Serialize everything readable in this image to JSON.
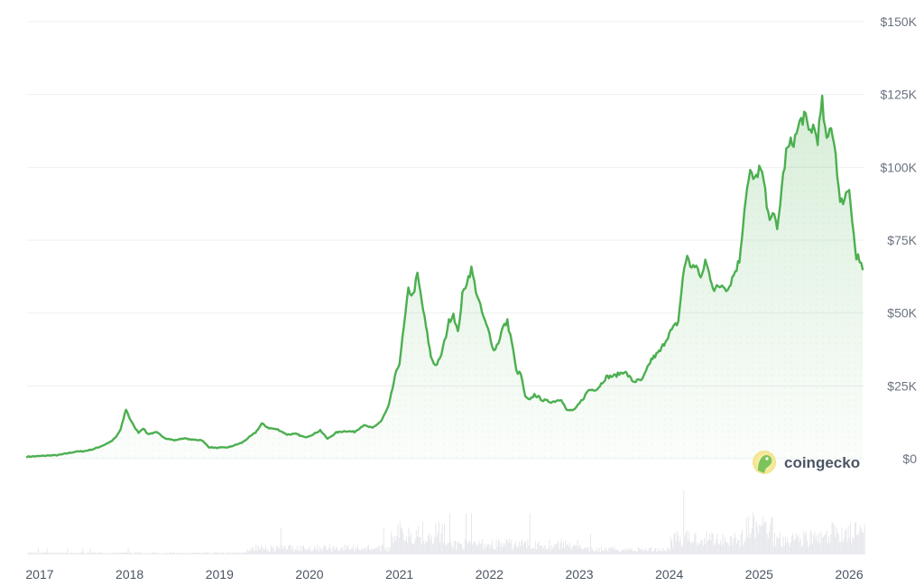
{
  "chart_data": {
    "type": "area",
    "y_ticks": [
      0,
      25000,
      50000,
      75000,
      100000,
      125000,
      150000
    ],
    "y_tick_labels": [
      "$0",
      "$25K",
      "$50K",
      "$75K",
      "$100K",
      "$125K",
      "$150K"
    ],
    "ylim": [
      0,
      150000
    ],
    "x_ticks": [
      2017,
      2018,
      2019,
      2020,
      2021,
      2022,
      2023,
      2024,
      2025,
      2026
    ],
    "x_tick_labels": [
      "2017",
      "2018",
      "2019",
      "2020",
      "2021",
      "2022",
      "2023",
      "2024",
      "2025",
      "2026"
    ],
    "xlim": [
      2016.86,
      2026.17
    ],
    "grid": true,
    "line_color": "#4caf50",
    "fill_color": "#4caf50",
    "volume_color": "#e5e7eb",
    "series": [
      {
        "x": [
          2016.86,
          2017.0,
          2017.1,
          2017.2,
          2017.3,
          2017.4,
          2017.5,
          2017.6,
          2017.7,
          2017.8,
          2017.85,
          2017.9,
          2017.96,
          2018.0,
          2018.05,
          2018.1,
          2018.15,
          2018.2,
          2018.3,
          2018.4,
          2018.5,
          2018.6,
          2018.7,
          2018.8,
          2018.88,
          2018.96,
          2019.1,
          2019.25,
          2019.4,
          2019.47,
          2019.55,
          2019.65,
          2019.75,
          2019.85,
          2019.95,
          2020.05,
          2020.12,
          2020.2,
          2020.3,
          2020.4,
          2020.5,
          2020.6,
          2020.7,
          2020.8,
          2020.88,
          2020.95,
          2021.0,
          2021.05,
          2021.1,
          2021.15,
          2021.2,
          2021.28,
          2021.35,
          2021.4,
          2021.45,
          2021.5,
          2021.55,
          2021.6,
          2021.65,
          2021.7,
          2021.75,
          2021.8,
          2021.85,
          2021.9,
          2021.95,
          2022.0,
          2022.05,
          2022.1,
          2022.15,
          2022.2,
          2022.25,
          2022.3,
          2022.35,
          2022.4,
          2022.45,
          2022.5,
          2022.6,
          2022.7,
          2022.8,
          2022.86,
          2022.95,
          2023.05,
          2023.1,
          2023.2,
          2023.3,
          2023.4,
          2023.5,
          2023.6,
          2023.7,
          2023.8,
          2023.9,
          2024.0,
          2024.1,
          2024.15,
          2024.2,
          2024.25,
          2024.3,
          2024.35,
          2024.4,
          2024.5,
          2024.6,
          2024.65,
          2024.7,
          2024.78,
          2024.85,
          2024.9,
          2024.95,
          2025.0,
          2025.05,
          2025.1,
          2025.15,
          2025.2,
          2025.25,
          2025.3,
          2025.35,
          2025.4,
          2025.45,
          2025.5,
          2025.55,
          2025.6,
          2025.65,
          2025.7,
          2025.75,
          2025.8,
          2025.85,
          2025.9,
          2025.95,
          2026.0,
          2026.05,
          2026.08,
          2026.1,
          2026.12,
          2026.15
        ],
        "values": [
          700,
          900,
          1100,
          1200,
          1800,
          2400,
          2600,
          3300,
          4500,
          6000,
          7500,
          10000,
          17000,
          14000,
          11000,
          9000,
          10500,
          8500,
          9000,
          7000,
          6300,
          7000,
          6500,
          6400,
          4000,
          3700,
          3900,
          5500,
          9000,
          12000,
          10500,
          10000,
          8300,
          8500,
          7300,
          8500,
          9800,
          6800,
          9000,
          9500,
          9200,
          11500,
          10500,
          13000,
          18000,
          28000,
          33000,
          45000,
          58000,
          56000,
          63000,
          48000,
          35000,
          32000,
          34000,
          40000,
          47000,
          50000,
          43000,
          56000,
          61000,
          65000,
          58000,
          52000,
          47000,
          43000,
          37000,
          40000,
          45000,
          47000,
          40000,
          30000,
          29000,
          21000,
          20000,
          22000,
          20000,
          19500,
          20500,
          16500,
          16800,
          21000,
          23500,
          24000,
          28000,
          28500,
          30000,
          26500,
          27000,
          34000,
          37000,
          43000,
          47000,
          62000,
          70000,
          65000,
          67000,
          61000,
          68000,
          58000,
          60000,
          58000,
          62000,
          68000,
          90000,
          98000,
          95000,
          100000,
          95000,
          83000,
          85000,
          78000,
          93000,
          105000,
          108000,
          110000,
          115000,
          118000,
          112000,
          114000,
          110000,
          122000,
          108000,
          115000,
          105000,
          87000,
          90000,
          93000,
          78000,
          68000,
          70000,
          67000,
          65000
        ]
      }
    ],
    "brand_label": "coingecko"
  }
}
